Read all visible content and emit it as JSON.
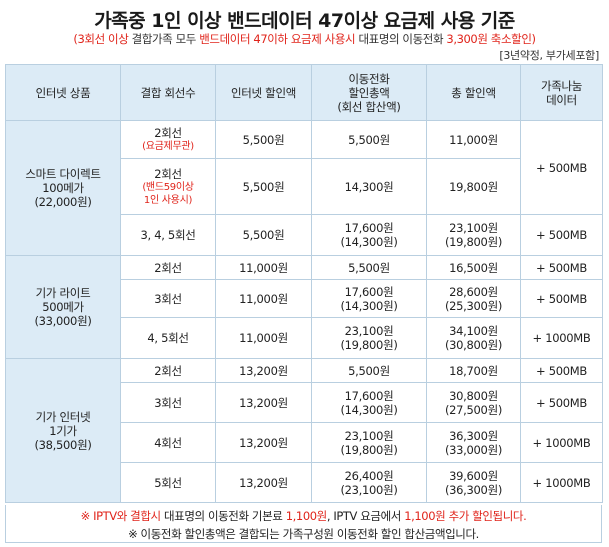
{
  "title": "가족중 1인 이상 밴드데이터 47이상 요금제 사용 기준",
  "subtitle": {
    "red1": "(3회선 이상",
    "text1": " 결합가족 모두 ",
    "red2": "밴드데이터 47이하 요금제 사용시",
    "text2": " 대표명의 이동전화 ",
    "red3": "3,300원 축소할인)"
  },
  "note": "[3년약정, 부가세포함]",
  "headers": {
    "product": "인터넷 상품",
    "lines": "결합 회선수",
    "internet_discount": "인터넷 할인액",
    "mobile_line1": "이동전화",
    "mobile_line2": "할인총액",
    "mobile_line3": "(회선 합산액)",
    "total": "총 할인액",
    "data_line1": "가족나눔",
    "data_line2": "데이터"
  },
  "products": [
    {
      "name_line1": "스마트 다이렉트",
      "name_line2": "100메가",
      "name_line3": "(22,000원)",
      "rows": [
        {
          "lines": "2회선",
          "lines_note": "(요금제무관)",
          "internet": "5,500원",
          "mobile": "5,500원",
          "mobile_sub": "",
          "total": "11,000원",
          "total_sub": ""
        },
        {
          "lines": "2회선",
          "lines_note": "(밴드59이상",
          "lines_note2": "1인 사용시)",
          "internet": "5,500원",
          "mobile": "14,300원",
          "mobile_sub": "",
          "total": "19,800원",
          "total_sub": ""
        },
        {
          "lines": "3, 4, 5회선",
          "lines_note": "",
          "internet": "5,500원",
          "mobile": "17,600원",
          "mobile_sub": "(14,300원)",
          "total": "23,100원",
          "total_sub": "(19,800원)",
          "data": "+ 500MB"
        }
      ],
      "merged_data": "+ 500MB"
    },
    {
      "name_line1": "기가 라이트",
      "name_line2": "500메가",
      "name_line3": "(33,000원)",
      "rows": [
        {
          "lines": "2회선",
          "internet": "11,000원",
          "mobile": "5,500원",
          "mobile_sub": "",
          "total": "16,500원",
          "total_sub": "",
          "data": "+ 500MB"
        },
        {
          "lines": "3회선",
          "internet": "11,000원",
          "mobile": "17,600원",
          "mobile_sub": "(14,300원)",
          "total": "28,600원",
          "total_sub": "(25,300원)",
          "data": "+ 500MB"
        },
        {
          "lines": "4, 5회선",
          "internet": "11,000원",
          "mobile": "23,100원",
          "mobile_sub": "(19,800원)",
          "total": "34,100원",
          "total_sub": "(30,800원)",
          "data": "+ 1000MB"
        }
      ]
    },
    {
      "name_line1": "기가 인터넷",
      "name_line2": "1기가",
      "name_line3": "(38,500원)",
      "rows": [
        {
          "lines": "2회선",
          "internet": "13,200원",
          "mobile": "5,500원",
          "mobile_sub": "",
          "total": "18,700원",
          "total_sub": "",
          "data": "+ 500MB"
        },
        {
          "lines": "3회선",
          "internet": "13,200원",
          "mobile": "17,600원",
          "mobile_sub": "(14,300원)",
          "total": "30,800원",
          "total_sub": "(27,500원)",
          "data": "+ 500MB"
        },
        {
          "lines": "4회선",
          "internet": "13,200원",
          "mobile": "23,100원",
          "mobile_sub": "(19,800원)",
          "total": "36,300원",
          "total_sub": "(33,000원)",
          "data": "+ 1000MB"
        },
        {
          "lines": "5회선",
          "internet": "13,200원",
          "mobile": "26,400원",
          "mobile_sub": "(23,100원)",
          "total": "39,600원",
          "total_sub": "(36,300원)",
          "data": "+ 1000MB"
        }
      ]
    }
  ],
  "footer": {
    "line1_red1": "※ IPTV와 결합시",
    "line1_text1": " 대표명의 이동전화 기본료 ",
    "line1_red2": "1,100원",
    "line1_text2": ", IPTV 요금에서 ",
    "line1_red3": "1,100원 추가 할인됩니다.",
    "line2": "※ 이동전화 할인총액은 결합되는 가족구성원 이동전화 할인 합산금액입니다."
  }
}
